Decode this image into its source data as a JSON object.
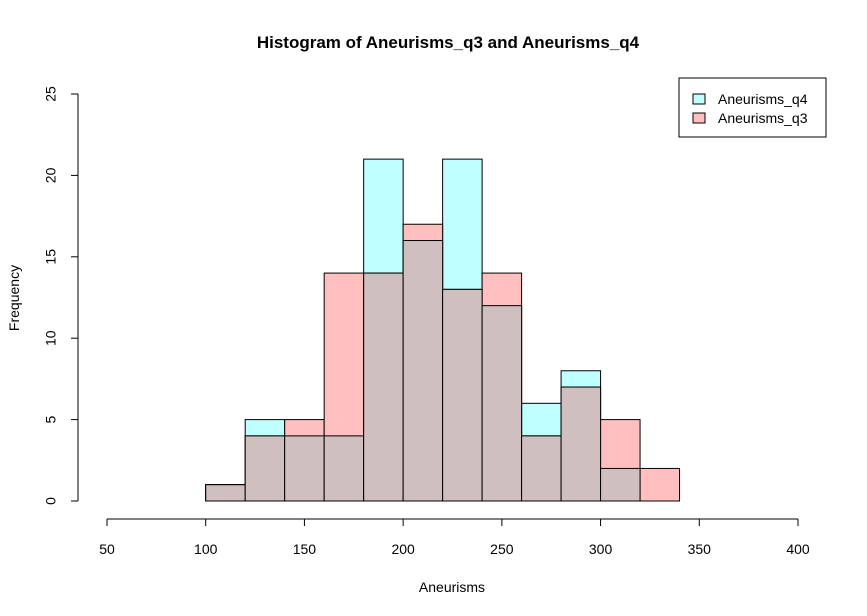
{
  "chart_data": {
    "type": "bar",
    "title": "Histogram of Aneurisms_q3 and Aneurisms_q4",
    "xlabel": "Aneurisms",
    "ylabel": "Frequency",
    "xlim": [
      50,
      400
    ],
    "ylim": [
      0,
      25
    ],
    "x_ticks": [
      50,
      100,
      150,
      200,
      250,
      300,
      350,
      400
    ],
    "y_ticks": [
      0,
      5,
      10,
      15,
      20,
      25
    ],
    "grid": false,
    "legend_position": "top-right",
    "legend": [
      {
        "label": "Aneurisms_q4",
        "color": "#BFFFFF"
      },
      {
        "label": "Aneurisms_q3",
        "color": "#FFBFBF"
      }
    ],
    "overlap_color": "#CFBFBF",
    "bins": [
      [
        100,
        120
      ],
      [
        120,
        140
      ],
      [
        140,
        160
      ],
      [
        160,
        180
      ],
      [
        180,
        200
      ],
      [
        200,
        220
      ],
      [
        220,
        240
      ],
      [
        240,
        260
      ],
      [
        260,
        280
      ],
      [
        280,
        300
      ],
      [
        300,
        320
      ],
      [
        320,
        340
      ]
    ],
    "series": [
      {
        "name": "Aneurisms_q4",
        "color": "#BFFFFF",
        "values": [
          1,
          5,
          4,
          4,
          21,
          16,
          21,
          12,
          6,
          8,
          2,
          0
        ]
      },
      {
        "name": "Aneurisms_q3",
        "color": "#FFBFBF",
        "values": [
          1,
          4,
          5,
          14,
          14,
          17,
          13,
          14,
          4,
          7,
          5,
          2
        ]
      }
    ]
  }
}
